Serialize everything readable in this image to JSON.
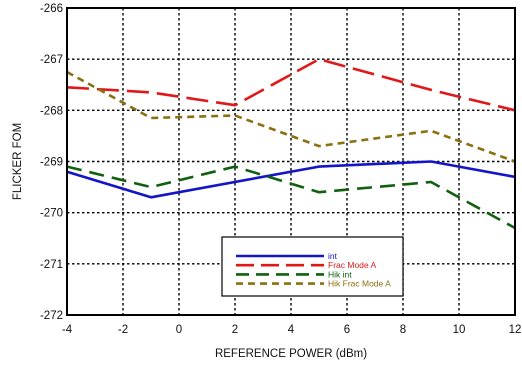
{
  "chart_data": {
    "type": "line",
    "xlabel": "REFERENCE POWER (dBm)",
    "ylabel": "FLICKER FOM",
    "xlim": [
      -4,
      12
    ],
    "ylim": [
      -272,
      -266
    ],
    "xticks": [
      -4,
      -2,
      0,
      2,
      4,
      6,
      8,
      10,
      12
    ],
    "yticks": [
      -266,
      -267,
      -268,
      -269,
      -270,
      -271,
      -272
    ],
    "grid": true,
    "legend_position": "bottom-center",
    "series": [
      {
        "name": "int",
        "color": "#1414c8",
        "dash": "solid",
        "x": [
          -4,
          -1,
          5,
          9,
          12
        ],
        "y": [
          -269.2,
          -269.7,
          -269.1,
          -269.0,
          -269.3
        ]
      },
      {
        "name": "Frac Mode A",
        "color": "#e01818",
        "dash": "long-dash",
        "x": [
          -4,
          -1,
          2,
          5,
          9,
          12
        ],
        "y": [
          -267.55,
          -267.65,
          -267.9,
          -267.0,
          -267.6,
          -268.0
        ]
      },
      {
        "name": "Hik int",
        "color": "#106010",
        "dash": "dash",
        "x": [
          -4,
          -1,
          2,
          5,
          9,
          12
        ],
        "y": [
          -269.1,
          -269.5,
          -269.1,
          -269.6,
          -269.4,
          -270.3
        ]
      },
      {
        "name": "Hik Frac Mode A",
        "color": "#8a7010",
        "dash": "short-dash",
        "x": [
          -4,
          -1,
          2,
          5,
          9,
          12
        ],
        "y": [
          -267.25,
          -268.15,
          -268.1,
          -268.7,
          -268.4,
          -269.0
        ]
      }
    ]
  }
}
